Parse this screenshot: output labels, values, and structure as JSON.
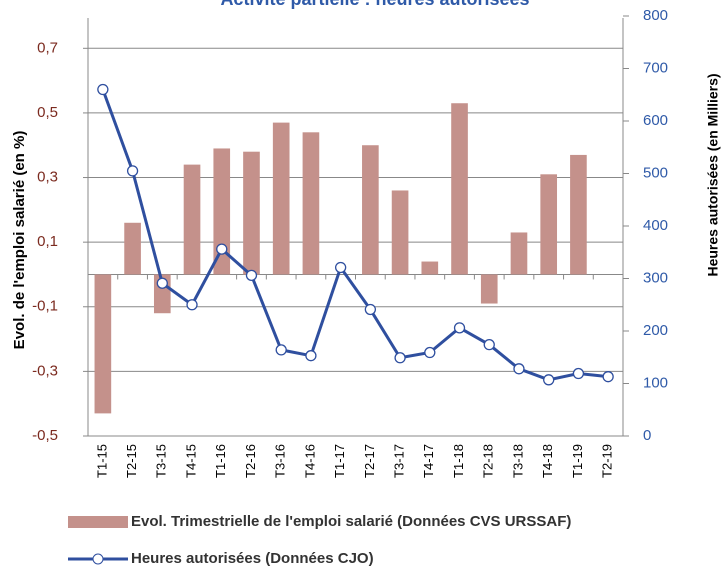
{
  "chart_data": {
    "type": "bar-line",
    "title": "Activité partielle : heures autorisées",
    "y_label": "Evol. de l'emploi salarié (en %)",
    "y2_label": "Heures autorisées (en Milliers)",
    "categories": [
      "T1-15",
      "T2-15",
      "T3-15",
      "T4-15",
      "T1-16",
      "T2-16",
      "T3-16",
      "T4-16",
      "T1-17",
      "T2-17",
      "T3-17",
      "T4-17",
      "T1-18",
      "T2-18",
      "T3-18",
      "T4-18",
      "T1-19",
      "T2-19"
    ],
    "series": [
      {
        "name": "Evol. Trimestrielle de l'emploi salarié (Données CVS URSSAF)",
        "type": "bar",
        "color": "#c4918b",
        "values": [
          -0.43,
          0.16,
          -0.12,
          0.34,
          0.39,
          0.38,
          0.47,
          0.44,
          null,
          0.4,
          0.26,
          0.04,
          0.53,
          -0.09,
          0.13,
          0.31,
          0.37,
          null
        ]
      },
      {
        "name": "Heures autorisées (Données CJO)",
        "type": "line",
        "axis": "y2",
        "color": "#2f4f9f",
        "values": [
          660,
          505,
          291,
          250,
          356,
          306,
          164,
          153,
          321,
          241,
          149,
          159,
          206,
          174,
          128,
          107,
          119,
          113
        ]
      }
    ],
    "ylim": [
      -0.5,
      0.8
    ],
    "yticks": [
      {
        "value": -0.5,
        "label": "-0,5"
      },
      {
        "value": -0.3,
        "label": "-0,3"
      },
      {
        "value": -0.1,
        "label": "-0,1"
      },
      {
        "value": 0.1,
        "label": "0,1"
      },
      {
        "value": 0.3,
        "label": "0,3"
      },
      {
        "value": 0.5,
        "label": "0,5"
      },
      {
        "value": 0.7,
        "label": "0,7"
      }
    ],
    "y2lim": [
      0,
      800
    ],
    "y2ticks": [
      0,
      100,
      200,
      300,
      400,
      500,
      600,
      700,
      800
    ],
    "grid": true
  }
}
